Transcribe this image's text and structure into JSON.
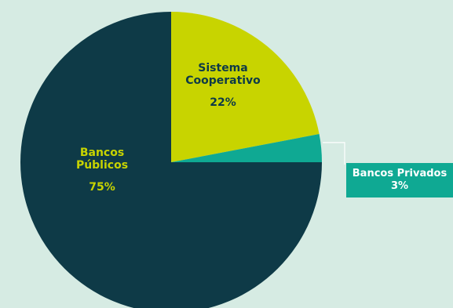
{
  "colors": {
    "background": "#d6ebe3",
    "bancos_publicos": "#0e3a47",
    "sistema_cooperativo": "#c8d400",
    "bancos_privados": "#0fa993",
    "connector": "#ffffff"
  },
  "labels": {
    "publicos_line1": "Bancos",
    "publicos_line2": "Públicos",
    "publicos_pct": "75%",
    "cooperativo_line1": "Sistema",
    "cooperativo_line2": "Cooperativo",
    "cooperativo_pct": "22%",
    "privados_name": "Bancos Privados",
    "privados_pct": "3%"
  },
  "chart_data": {
    "type": "pie",
    "title": "",
    "slices": [
      {
        "name": "Sistema Cooperativo",
        "value": 22,
        "color": "#c8d400"
      },
      {
        "name": "Bancos Privados",
        "value": 3,
        "color": "#0fa993"
      },
      {
        "name": "Bancos Públicos",
        "value": 75,
        "color": "#0e3a47"
      }
    ],
    "start_angle_deg": 0,
    "direction": "clockwise",
    "legend": "none"
  }
}
